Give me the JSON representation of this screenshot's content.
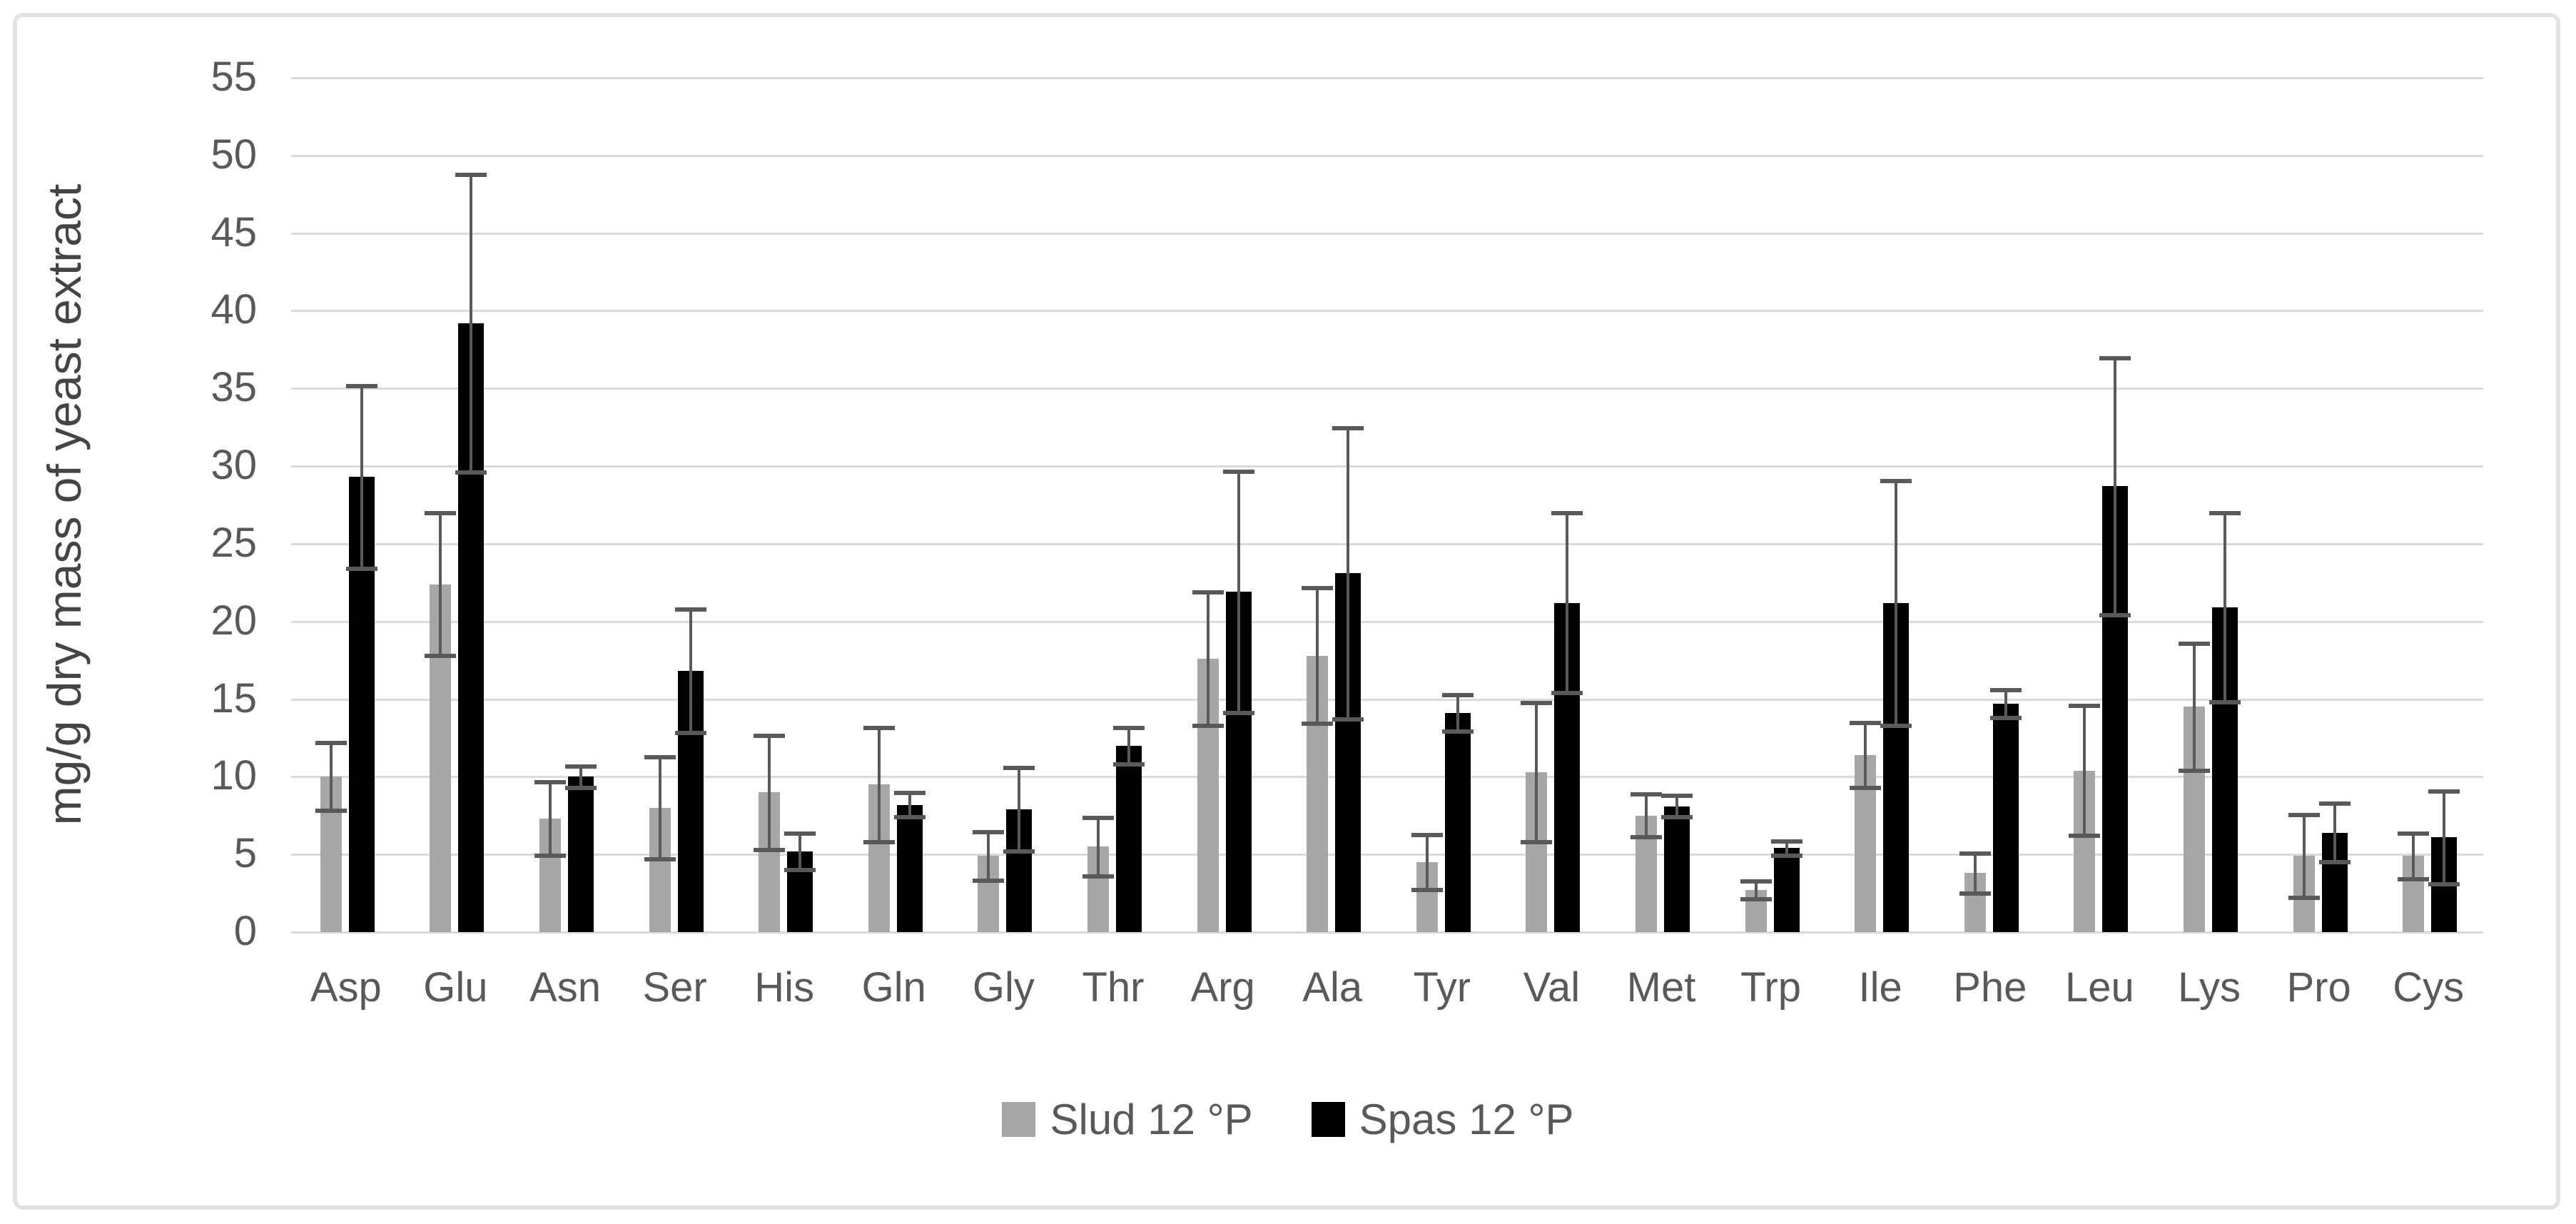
{
  "styles": {
    "series_gray": "#a6a6a6",
    "series_black": "#000000",
    "gridline_color": "#dadada",
    "error_bar_color": "#595959",
    "text_color": "#595959",
    "frame_border_color": "#e3e3e3",
    "background": "#ffffff"
  },
  "chart_data": {
    "type": "bar",
    "title": "",
    "xlabel": "",
    "ylabel": "mg/g dry mass of yeast extract",
    "ylim": [
      0,
      55
    ],
    "ytick_step": 5,
    "ytick_labels": [
      "0",
      "5",
      "10",
      "15",
      "20",
      "25",
      "30",
      "35",
      "40",
      "45",
      "50",
      "55"
    ],
    "grid": true,
    "legend_position": "bottom",
    "error_bars": true,
    "categories": [
      "Asp",
      "Glu",
      "Asn",
      "Ser",
      "His",
      "Gln",
      "Gly",
      "Thr",
      "Arg",
      "Ala",
      "Tyr",
      "Val",
      "Met",
      "Trp",
      "Ile",
      "Phe",
      "Leu",
      "Lys",
      "Pro",
      "Cys"
    ],
    "series": [
      {
        "name": "Slud 12 °P",
        "color": "#a6a6a6",
        "values": [
          10.0,
          22.4,
          7.3,
          8.0,
          9.0,
          9.5,
          4.9,
          5.5,
          17.6,
          17.8,
          4.5,
          10.3,
          7.5,
          2.7,
          11.4,
          3.8,
          10.4,
          14.5,
          4.9,
          4.9
        ],
        "errors": [
          2.2,
          4.6,
          2.4,
          3.3,
          3.7,
          3.7,
          1.6,
          1.9,
          4.3,
          4.4,
          1.8,
          4.5,
          1.4,
          0.6,
          2.1,
          1.3,
          4.2,
          4.1,
          2.7,
          1.5
        ]
      },
      {
        "name": "Spas 12 °P",
        "color": "#000000",
        "values": [
          29.3,
          39.2,
          10.0,
          16.8,
          5.2,
          8.2,
          7.9,
          12.0,
          21.9,
          23.1,
          14.1,
          21.2,
          8.1,
          5.4,
          21.2,
          14.7,
          28.7,
          20.9,
          6.4,
          6.1
        ],
        "errors": [
          5.9,
          9.6,
          0.7,
          4.0,
          1.2,
          0.8,
          2.7,
          1.2,
          7.8,
          9.4,
          1.2,
          5.8,
          0.7,
          0.5,
          7.9,
          0.9,
          8.3,
          6.1,
          1.9,
          3.0
        ]
      }
    ]
  },
  "layout_note": ""
}
